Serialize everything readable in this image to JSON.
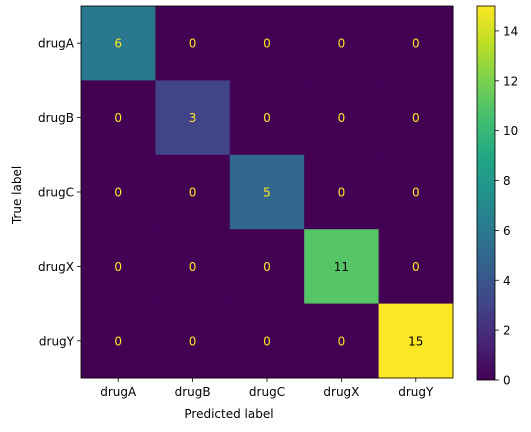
{
  "chart_data": {
    "type": "heatmap",
    "title": "",
    "xlabel": "Predicted label",
    "ylabel": "True label",
    "x_categories": [
      "drugA",
      "drugB",
      "drugC",
      "drugX",
      "drugY"
    ],
    "y_categories": [
      "drugA",
      "drugB",
      "drugC",
      "drugX",
      "drugY"
    ],
    "matrix": [
      [
        6,
        0,
        0,
        0,
        0
      ],
      [
        0,
        3,
        0,
        0,
        0
      ],
      [
        0,
        0,
        5,
        0,
        0
      ],
      [
        0,
        0,
        0,
        11,
        0
      ],
      [
        0,
        0,
        0,
        0,
        15
      ]
    ],
    "colormap": "viridis",
    "vmin": 0,
    "vmax": 15,
    "colorbar": {
      "ticks": [
        0,
        2,
        4,
        6,
        8,
        10,
        12,
        14
      ],
      "tick_labels": [
        "0",
        "2",
        "4",
        "6",
        "8",
        "10",
        "12",
        "14"
      ]
    },
    "grid": false,
    "text_colors": {
      "on_dark": "#fde725",
      "on_light": "#000000"
    }
  }
}
